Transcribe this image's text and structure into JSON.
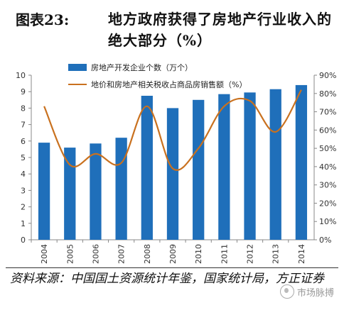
{
  "title": {
    "label": "图表23:",
    "main": "地方政府获得了房地产行业收入的绝大部分（%）"
  },
  "source": "资料来源：中国国土资源统计年鉴，国家统计局，方正证券",
  "watermark": {
    "text": "市场脉搏",
    "icon": "logo-icon"
  },
  "colors": {
    "bar": "#1f6fba",
    "line": "#c9711f"
  },
  "chart_data": {
    "type": "bar",
    "categories": [
      "2004",
      "2005",
      "2006",
      "2007",
      "2008",
      "2009",
      "2010",
      "2011",
      "2012",
      "2013",
      "2014"
    ],
    "series": [
      {
        "name": "房地产开发企业个数（万个）",
        "type": "bar",
        "axis": "left",
        "values": [
          5.9,
          5.6,
          5.85,
          6.2,
          8.75,
          8.0,
          8.5,
          8.85,
          8.95,
          9.15,
          9.4
        ]
      },
      {
        "name": "地价和房地产相关税收占商品房销售额（%）",
        "type": "line",
        "axis": "right",
        "values": [
          73,
          41,
          47,
          42,
          73,
          39,
          50,
          73,
          76,
          59,
          82
        ]
      }
    ],
    "y_left": {
      "lim": [
        0,
        10
      ],
      "ticks": [
        "0",
        "1",
        "2",
        "3",
        "4",
        "5",
        "6",
        "7",
        "8",
        "9",
        "10"
      ]
    },
    "y_right": {
      "lim": [
        0,
        90
      ],
      "ticks": [
        "0%",
        "10%",
        "20%",
        "30%",
        "40%",
        "50%",
        "60%",
        "70%",
        "80%",
        "90%"
      ]
    },
    "legend": "top-left",
    "grid": false
  }
}
